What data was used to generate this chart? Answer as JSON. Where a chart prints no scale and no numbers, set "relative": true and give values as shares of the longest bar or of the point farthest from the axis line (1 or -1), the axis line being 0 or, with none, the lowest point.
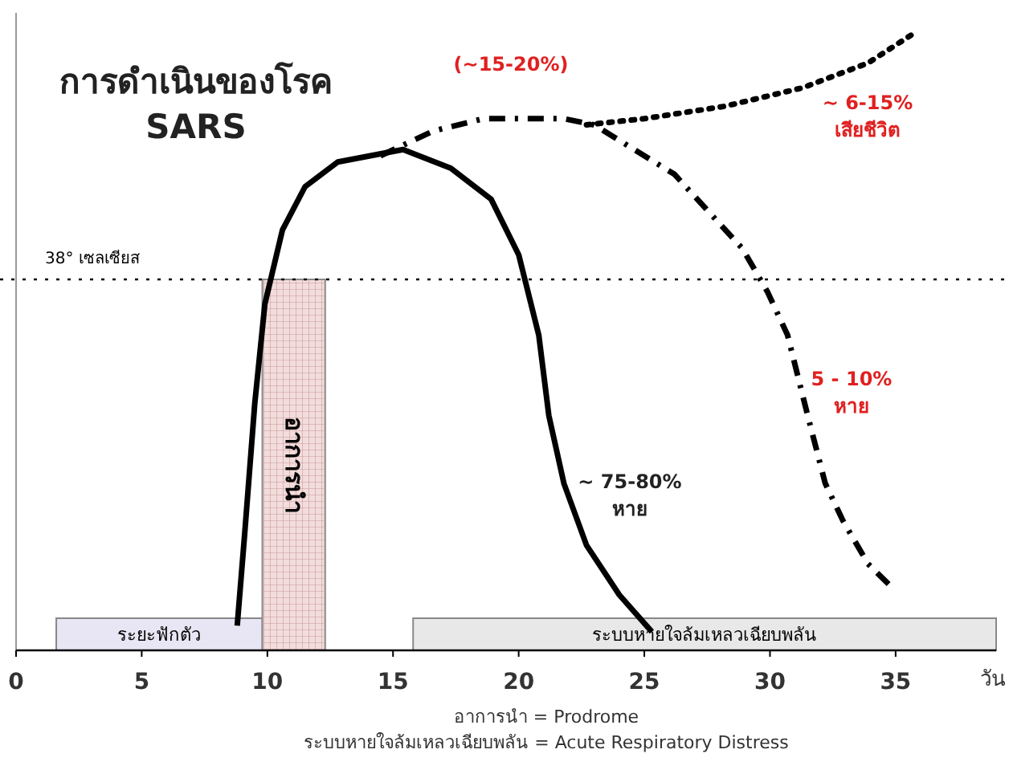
{
  "chart_data": {
    "type": "line",
    "title": "การดำเนินของโรค",
    "subtitle": "SARS",
    "xlabel": "วัน",
    "relative": true,
    "xlim": [
      0,
      39
    ],
    "xticks": [
      0,
      5,
      10,
      15,
      20,
      25,
      30,
      35
    ],
    "series": [
      {
        "color": "#000000",
        "line_style": "solid",
        "x": [
          8.8,
          9.1,
          9.5,
          9.9,
          10.6,
          11.5,
          12.8,
          15.4,
          17.3,
          18.9,
          20.0,
          20.8,
          21.2,
          21.8,
          22.7,
          24.0,
          25.3
        ],
        "values": [
          0.04,
          0.19,
          0.4,
          0.56,
          0.68,
          0.75,
          0.79,
          0.81,
          0.78,
          0.73,
          0.64,
          0.51,
          0.38,
          0.27,
          0.17,
          0.09,
          0.03
        ]
      },
      {
        "color": "#000000",
        "line_style": "dashed",
        "x": [
          14.5,
          16.6,
          18.6,
          21.8,
          23.0,
          26.2,
          28.9,
          29.9,
          30.7,
          31.5,
          32.2,
          32.9,
          33.9,
          34.9
        ],
        "values": [
          0.8,
          0.84,
          0.86,
          0.86,
          0.85,
          0.77,
          0.65,
          0.58,
          0.51,
          0.38,
          0.27,
          0.21,
          0.14,
          0.1
        ]
      },
      {
        "color": "#000000",
        "line_style": "dotted",
        "x": [
          22.7,
          25.0,
          28.2,
          31.3,
          33.9,
          35.8
        ],
        "values": [
          0.85,
          0.86,
          0.88,
          0.91,
          0.95,
          1.0
        ]
      }
    ],
    "ref_lines": [
      {
        "axis": "y",
        "value": 0.6,
        "label": "38° เซลเซียส",
        "line_style": "dotted",
        "color": "#000000"
      }
    ],
    "bands": [
      {
        "axis": "x",
        "from": 1.6,
        "to": 9.8,
        "label": "ระยะฟักตัว",
        "color": "#e8e6f4"
      },
      {
        "axis": "x",
        "from": 9.8,
        "to": 12.3,
        "label": "อาการนำ",
        "color": "#f3dcdc"
      },
      {
        "axis": "x",
        "from": 15.8,
        "to": 39,
        "label": "ระบบหายใจล้มเหลวเฉียบพลัน",
        "color": "#e8e8e8"
      }
    ],
    "annotations": [
      "(~15-20%)",
      "~ 6-15%\nเสียชีวิต",
      "5 - 10%\nหาย",
      "~ 75-80%\nหาย",
      "อาการนำ = Prodrome",
      "ระบบหายใจล้มเหลวเฉียบพลัน = Acute Respiratory Distress"
    ]
  }
}
